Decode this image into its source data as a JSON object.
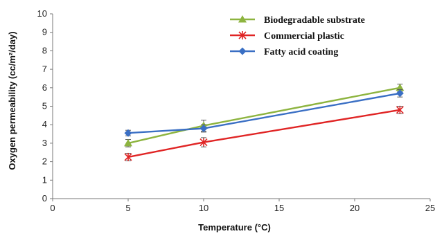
{
  "chart_data": {
    "type": "line",
    "title": "",
    "xlabel": "Temperature (°C)",
    "ylabel": "Oxygen permeability (cc/m²/day)",
    "xlim": [
      0,
      25
    ],
    "ylim": [
      0,
      10
    ],
    "x_ticks": [
      "0",
      "5",
      "10",
      "15",
      "20",
      "25"
    ],
    "y_ticks": [
      "0",
      "1",
      "2",
      "3",
      "4",
      "5",
      "6",
      "7",
      "8",
      "9",
      "10"
    ],
    "grid": false,
    "legend_position": "top-right",
    "series": [
      {
        "name": "Biodegradable substrate",
        "color": "#8db43f",
        "marker": "triangle-icon",
        "x": [
          5,
          10,
          23
        ],
        "y": [
          3.0,
          3.95,
          6.0
        ],
        "err": [
          0.2,
          0.3,
          0.2
        ]
      },
      {
        "name": "Commercial plastic",
        "color": "#e02424",
        "marker": "star-cross-icon",
        "x": [
          5,
          10,
          23
        ],
        "y": [
          2.25,
          3.05,
          4.8
        ],
        "err": [
          0.2,
          0.25,
          0.2
        ]
      },
      {
        "name": "Fatty acid coating",
        "color": "#3a6fc4",
        "marker": "diamond-icon",
        "x": [
          5,
          10,
          23
        ],
        "y": [
          3.55,
          3.8,
          5.7
        ],
        "err": [
          0.15,
          0.2,
          0.2
        ]
      }
    ]
  }
}
